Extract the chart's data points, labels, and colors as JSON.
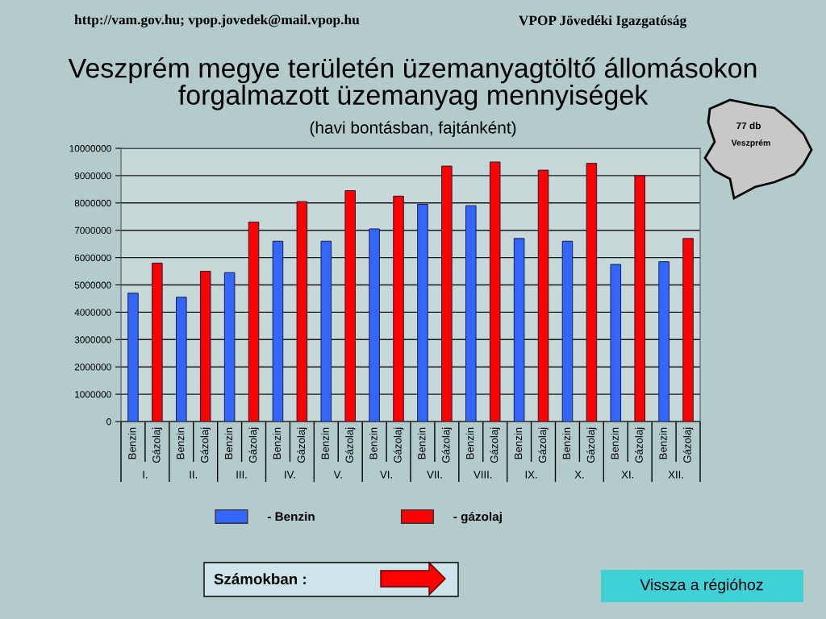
{
  "chart_data": {
    "type": "bar",
    "title": "Veszprém megye területén üzemanyagtöltő állomásokon forgalmazott üzemanyag mennyiségek",
    "subtitle": "(havi bontásban, fajtánként)",
    "categories": [
      "Benzin",
      "Gázolaj",
      "Benzin",
      "Gázolaj",
      "Benzin",
      "Gázolaj",
      "Benzin",
      "Gázolaj",
      "Benzin",
      "Gázolaj",
      "Benzin",
      "Gázolaj",
      "Benzin",
      "Gázolaj",
      "Benzin",
      "Gázolaj",
      "Benzin",
      "Gázolaj",
      "Benzin",
      "Gázolaj",
      "Benzin",
      "Gázolaj",
      "Benzin",
      "Gázolaj"
    ],
    "series": [
      {
        "name": "- Benzin",
        "color": "#3366ff",
        "values": [
          4700000,
          null,
          4550000,
          null,
          5450000,
          null,
          6600000,
          null,
          6600000,
          null,
          7050000,
          null,
          7950000,
          null,
          7900000,
          null,
          6700000,
          null,
          6600000,
          null,
          5750000,
          null,
          5850000,
          null
        ]
      },
      {
        "name": "- gázolaj",
        "color": "#ff0000",
        "values": [
          null,
          5800000,
          null,
          5500000,
          null,
          7300000,
          null,
          8050000,
          null,
          8450000,
          null,
          8250000,
          null,
          9350000,
          null,
          9500000,
          null,
          9200000,
          null,
          9450000,
          null,
          9000000,
          null,
          6700000
        ]
      }
    ],
    "ylim": [
      0,
      10000000
    ],
    "yticks": [
      0,
      1000000,
      2000000,
      3000000,
      4000000,
      5000000,
      6000000,
      7000000,
      8000000,
      9000000,
      10000000
    ],
    "grid": "y",
    "legend": "bottom",
    "annotations": [
      "http://vam.gov.hu; vpop.jovedek@mail.vpop.hu",
      "VPOP Jövedéki Igazgatóság",
      "77 db",
      "Veszprém",
      "Számokban :",
      "Vissza a régióhoz",
      "I.",
      "II.",
      "III.",
      "IV.",
      "V.",
      "VI.",
      "VII.",
      "VIII.",
      "IX.",
      "X.",
      "XI.",
      "XII."
    ]
  }
}
